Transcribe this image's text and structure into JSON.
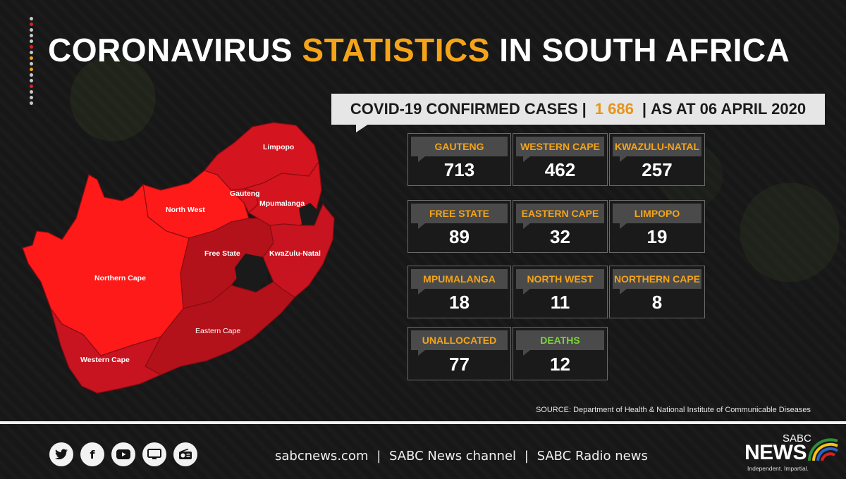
{
  "header": {
    "title_part1": "CORONAVIRUS",
    "title_highlight": "STATISTICS",
    "title_part2": "IN SOUTH AFRICA"
  },
  "subtitle": {
    "prefix": "COVID-19 CONFIRMED CASES",
    "total": "1 686",
    "date": "AS AT 06 APRIL 2020",
    "separator": "|"
  },
  "map": {
    "labels": {
      "limpopo": "Limpopo",
      "gauteng": "Gauteng",
      "mpumalanga": "Mpumalanga",
      "north_west": "North West",
      "free_state": "Free State",
      "kwazulu_natal": "KwaZulu-Natal",
      "northern_cape": "Northern Cape",
      "eastern_cape": "Eastern Cape",
      "western_cape": "Western Cape"
    }
  },
  "stats": [
    {
      "label": "GAUTENG",
      "value": "713"
    },
    {
      "label": "WESTERN CAPE",
      "value": "462"
    },
    {
      "label": "KWAZULU-NATAL",
      "value": "257"
    },
    {
      "label": "FREE STATE",
      "value": "89"
    },
    {
      "label": "EASTERN CAPE",
      "value": "32"
    },
    {
      "label": "LIMPOPO",
      "value": "19"
    },
    {
      "label": "MPUMALANGA",
      "value": "18"
    },
    {
      "label": "NORTH WEST",
      "value": "11"
    },
    {
      "label": "NORTHERN CAPE",
      "value": "8"
    },
    {
      "label": "UNALLOCATED",
      "value": "77"
    },
    {
      "label": "DEATHS",
      "value": "12"
    }
  ],
  "source": "SOURCE: Department of Health & National Institute of Communicable Diseases",
  "footer": {
    "icons": [
      "twitter-icon",
      "facebook-icon",
      "youtube-icon",
      "tv-icon",
      "radio-icon"
    ],
    "link1": "sabcnews.com",
    "link2": "SABC News channel",
    "link3": "SABC Radio news",
    "separator": "|"
  },
  "logo": {
    "top": "SABC",
    "main": "NEWS",
    "tagline": "Independent. Impartial."
  },
  "colors": {
    "accent": "#f4a41a",
    "deaths": "#7fd23a",
    "map_light": "#ff1a1a",
    "map_mid": "#d4141e",
    "map_dark": "#b3121a"
  }
}
